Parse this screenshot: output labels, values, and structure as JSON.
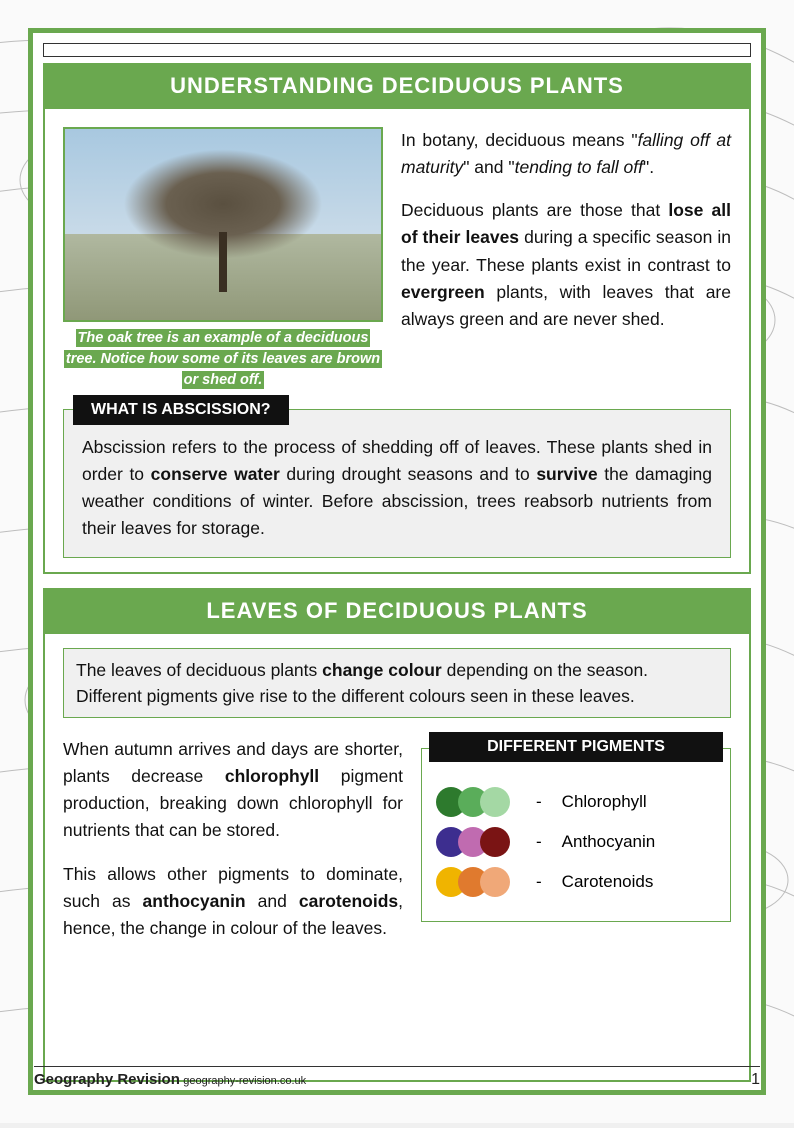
{
  "page": {
    "title1": "UNDERSTANDING DECIDUOUS PLANTS",
    "title2": "LEAVES OF DECIDUOUS PLANTS",
    "footer_brand": "Geography Revision",
    "footer_site": "geography-revision.co.uk",
    "page_number": "1"
  },
  "section1": {
    "image_caption": "The oak tree is an example of a deciduous tree. Notice how some of its leaves are brown or shed off.",
    "para1_pre": "In botany, deciduous means \"",
    "para1_em1": "falling off at maturity",
    "para1_mid": "\" and \"",
    "para1_em2": "tending to fall off",
    "para1_post": "\".",
    "para2_a": "Deciduous plants are those that ",
    "para2_b1": "lose all of their leaves",
    "para2_b": " during a specific season in the year. These plants exist in contrast to ",
    "para2_b2": "evergreen",
    "para2_c": " plants, with leaves that are always green and are never shed.",
    "callout_label": "WHAT IS ABSCISSION?",
    "callout_a": "Abscission refers to the process of shedding off of leaves. These plants shed in order to ",
    "callout_b1": "conserve water",
    "callout_b": " during drought seasons and to ",
    "callout_b2": "survive",
    "callout_c": " the damaging weather conditions of winter. Before abscission, trees reabsorb nutrients from their leaves for storage."
  },
  "section2": {
    "intro_a": "The leaves of deciduous plants ",
    "intro_b1": "change colour",
    "intro_b": " depending on the season. Different pigments give rise to the different colours seen in these leaves.",
    "p1_a": "When autumn arrives and days are shorter, plants decrease ",
    "p1_b1": "chlorophyll",
    "p1_b": " pigment production, breaking down chlorophyll for nutrients that can be stored.",
    "p2_a": "This allows other pigments to dominate, such as ",
    "p2_b1": "anthocyanin",
    "p2_mid": " and ",
    "p2_b2": "carotenoids",
    "p2_b": ", hence, the change in colour of  the leaves.",
    "pigments_label": "DIFFERENT PIGMENTS",
    "pigments": [
      {
        "name": "Chlorophyll",
        "colors": [
          "#2d7a2d",
          "#5aad5a",
          "#a4d8a4"
        ]
      },
      {
        "name": "Anthocyanin",
        "colors": [
          "#3d2e8f",
          "#c06bb0",
          "#7a1414"
        ]
      },
      {
        "name": "Carotenoids",
        "colors": [
          "#f0b400",
          "#e07a2e",
          "#f0a878"
        ]
      }
    ]
  },
  "colors": {
    "brand_green": "#6aa84f",
    "callout_black": "#111111",
    "callout_bg": "#f0f0f0"
  }
}
